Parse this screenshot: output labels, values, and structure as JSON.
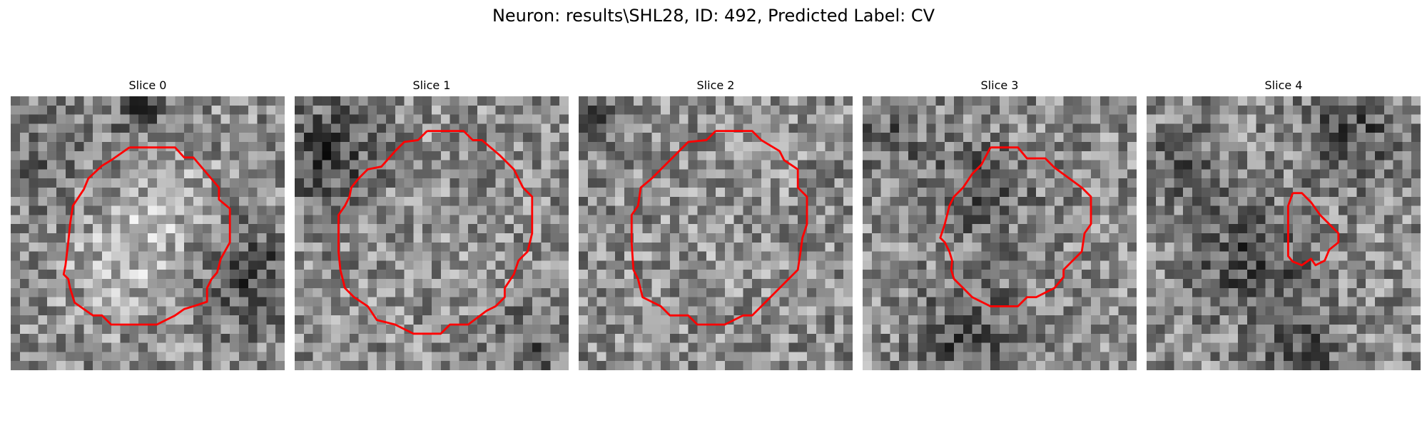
{
  "figure": {
    "title": "Neuron: results\\SHL28, ID: 492, Predicted Label: CV"
  },
  "colors": {
    "contour": "#ff0000",
    "background": "#ffffff"
  },
  "panels": [
    {
      "title": "Slice 0",
      "seed": 101
    },
    {
      "title": "Slice 1",
      "seed": 202
    },
    {
      "title": "Slice 2",
      "seed": 303
    },
    {
      "title": "Slice 3",
      "seed": 404
    },
    {
      "title": "Slice 4",
      "seed": 505
    }
  ]
}
